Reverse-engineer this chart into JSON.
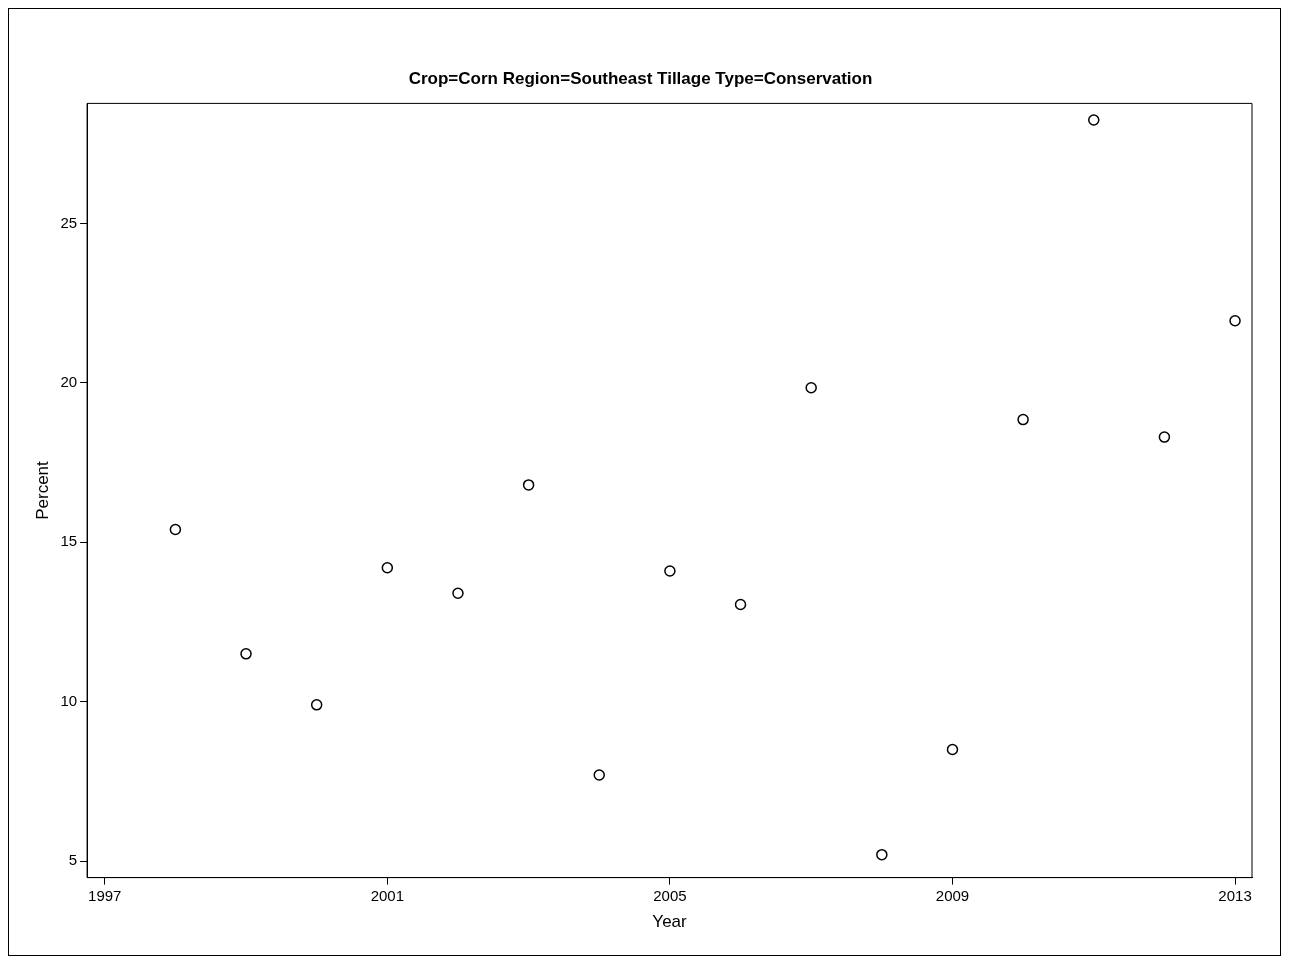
{
  "chart_data": {
    "type": "scatter",
    "title": "Crop=Corn Region=Southeast Tillage Type=Conservation",
    "xlabel": "Year",
    "ylabel": "Percent",
    "x": [
      1998,
      1999,
      2000,
      2001,
      2002,
      2003,
      2004,
      2005,
      2006,
      2007,
      2008,
      2009,
      2010,
      2011,
      2012,
      2013
    ],
    "series": [
      {
        "color": "#000000",
        "values": [
          15.4,
          11.5,
          9.9,
          14.2,
          13.4,
          16.8,
          7.7,
          14.1,
          13.05,
          19.85,
          5.2,
          8.5,
          18.85,
          28.25,
          18.3,
          21.95
        ]
      }
    ],
    "xlim": [
      1996.75,
      2013.24
    ],
    "xticks": [
      1997,
      2001,
      2005,
      2009,
      2013
    ],
    "ylim": [
      4.48,
      28.77
    ],
    "yticks": [
      5,
      10,
      15,
      20,
      25
    ],
    "marker": "circle",
    "grid": false,
    "legend": false
  }
}
